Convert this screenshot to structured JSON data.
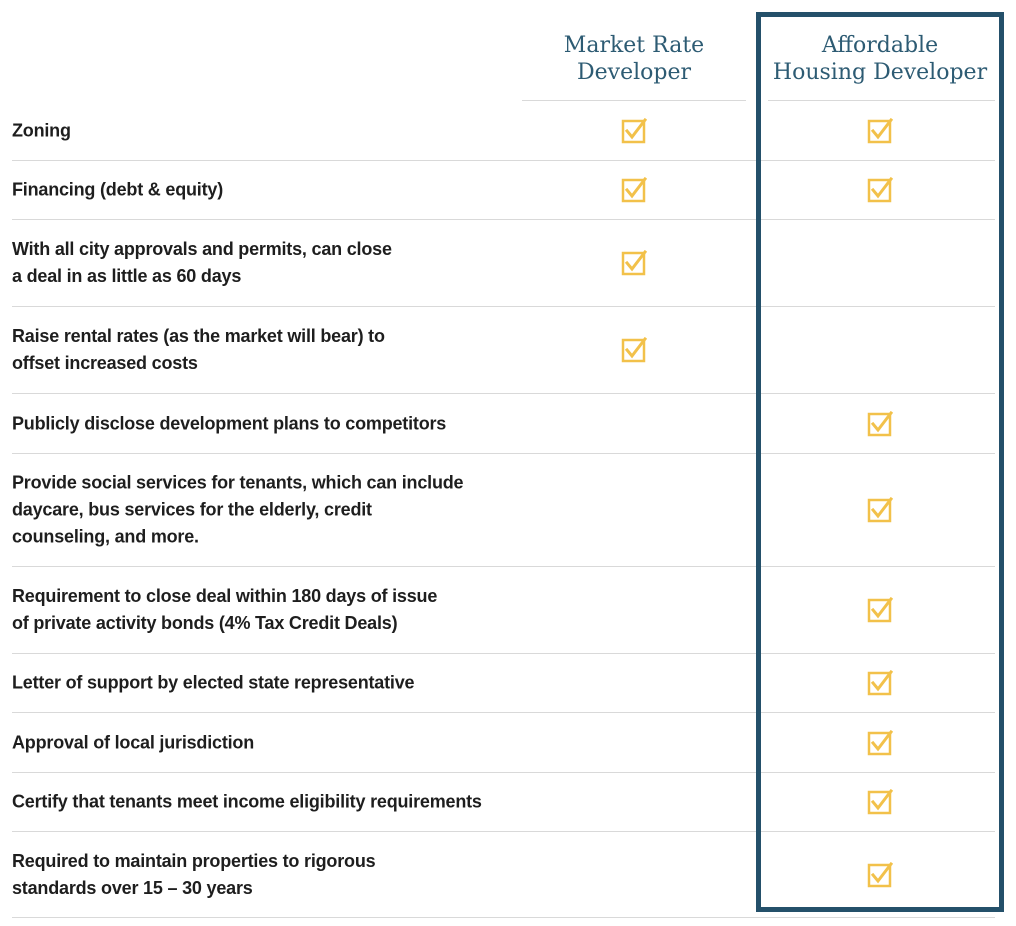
{
  "columns": {
    "market": "Market Rate\nDeveloper",
    "affordable": "Affordable\nHousing Developer"
  },
  "colors": {
    "accent_frame": "#24506a",
    "heading": "#2d5b73",
    "check": "#f2c14a",
    "rule": "#d9d9d9"
  },
  "rows": [
    {
      "label": "Zoning",
      "market": true,
      "affordable": true
    },
    {
      "label": "Financing (debt & equity)",
      "market": true,
      "affordable": true
    },
    {
      "label": "With all city approvals and permits, can close\na deal in as little as 60 days",
      "market": true,
      "affordable": false
    },
    {
      "label": "Raise rental rates (as the market will bear) to\noffset increased costs",
      "market": true,
      "affordable": false
    },
    {
      "label": "Publicly disclose development plans to competitors",
      "market": false,
      "affordable": true
    },
    {
      "label": "Provide social services for tenants, which can include\ndaycare, bus services for the elderly, credit\ncounseling, and more.",
      "market": false,
      "affordable": true
    },
    {
      "label": "Requirement to close deal within 180 days of issue\nof private activity bonds (4% Tax Credit Deals)",
      "market": false,
      "affordable": true
    },
    {
      "label": "Letter of support by elected state representative",
      "market": false,
      "affordable": true
    },
    {
      "label": "Approval of local jurisdiction",
      "market": false,
      "affordable": true
    },
    {
      "label": "Certify that tenants meet income eligibility requirements",
      "market": false,
      "affordable": true
    },
    {
      "label": "Required to maintain properties to rigorous\nstandards over 15 – 30 years",
      "market": false,
      "affordable": true
    }
  ]
}
